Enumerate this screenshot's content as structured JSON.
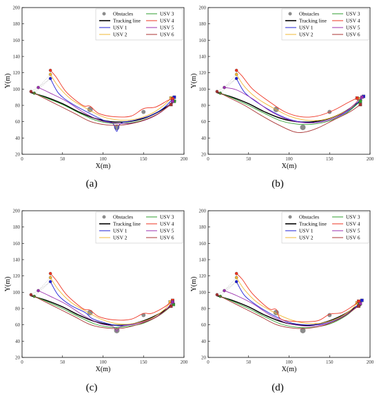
{
  "figure": {
    "panel_labels": [
      "(a)",
      "(b)",
      "(c)",
      "(d)"
    ]
  },
  "legend": {
    "entries": [
      {
        "label": "Obstacles",
        "kind": "marker",
        "color": "#8c8c8c"
      },
      {
        "label": "Tracking line",
        "kind": "line",
        "color": "#000000"
      },
      {
        "label": "USV 1",
        "kind": "line",
        "color": "#1f1fd6"
      },
      {
        "label": "USV 2",
        "kind": "line",
        "color": "#f2b733"
      },
      {
        "label": "USV 3",
        "kind": "line",
        "color": "#2e9e2e"
      },
      {
        "label": "USV 4",
        "kind": "line",
        "color": "#ee3322"
      },
      {
        "label": "USV 5",
        "kind": "line",
        "color": "#9b2fae"
      },
      {
        "label": "USV 6",
        "kind": "line",
        "color": "#a83232"
      }
    ]
  },
  "chart_data": [
    {
      "type": "line",
      "panel": "(a)",
      "xlabel": "X(m)",
      "ylabel": "Y(m)",
      "xlim": [
        0,
        200
      ],
      "ylim": [
        20,
        200
      ],
      "xticks": [
        0,
        50,
        100,
        150,
        200
      ],
      "yticks": [
        20,
        40,
        60,
        80,
        100,
        120,
        140,
        160,
        180,
        200
      ],
      "obstacles": [
        {
          "x": 84,
          "y": 75
        },
        {
          "x": 117,
          "y": 53
        },
        {
          "x": 150,
          "y": 72
        }
      ],
      "tracking_line": {
        "x": [
          10,
          30,
          50,
          70,
          90,
          110,
          130,
          150,
          170,
          190
        ],
        "y": [
          96,
          90,
          82,
          72,
          64,
          60,
          60,
          64,
          73,
          86
        ]
      },
      "series": [
        {
          "name": "USV 1",
          "color": "#1f1fd6",
          "x": [
            35,
            45,
            60,
            80,
            100,
            112,
            117,
            122,
            140,
            160,
            175,
            188
          ],
          "y": [
            113,
            95,
            83,
            72,
            62,
            58,
            48,
            58,
            62,
            68,
            77,
            90
          ]
        },
        {
          "name": "USV 2",
          "color": "#f2b733",
          "x": [
            35,
            45,
            60,
            80,
            100,
            120,
            140,
            160,
            175,
            184
          ],
          "y": [
            118,
            103,
            88,
            76,
            66,
            62,
            63,
            70,
            80,
            89
          ]
        },
        {
          "name": "USV 3",
          "color": "#2e9e2e",
          "x": [
            15,
            30,
            50,
            70,
            90,
            110,
            130,
            150,
            170,
            188
          ],
          "y": [
            95,
            89,
            81,
            71,
            62,
            58,
            58,
            62,
            71,
            85
          ]
        },
        {
          "name": "USV 4",
          "color": "#ee3322",
          "x": [
            35,
            42,
            55,
            75,
            84,
            95,
            115,
            135,
            150,
            165,
            180,
            186
          ],
          "y": [
            123,
            115,
            96,
            80,
            79,
            70,
            66,
            67,
            76,
            78,
            86,
            88
          ]
        },
        {
          "name": "USV 5",
          "color": "#9b2fae",
          "x": [
            20,
            35,
            55,
            75,
            95,
            115,
            135,
            155,
            172,
            186
          ],
          "y": [
            102,
            95,
            85,
            72,
            62,
            58,
            58,
            63,
            72,
            85
          ]
        },
        {
          "name": "USV 6",
          "color": "#a83232",
          "x": [
            11,
            25,
            45,
            65,
            85,
            105,
            125,
            145,
            165,
            184
          ],
          "y": [
            97,
            90,
            80,
            70,
            60,
            56,
            56,
            60,
            68,
            81
          ]
        }
      ]
    },
    {
      "type": "line",
      "panel": "(b)",
      "xlabel": "X(m)",
      "ylabel": "Y(m)",
      "xlim": [
        0,
        200
      ],
      "ylim": [
        20,
        200
      ],
      "xticks": [
        0,
        50,
        100,
        150,
        200
      ],
      "yticks": [
        20,
        40,
        60,
        80,
        100,
        120,
        140,
        160,
        180,
        200
      ],
      "obstacles": [
        {
          "x": 84,
          "y": 75
        },
        {
          "x": 117,
          "y": 53
        },
        {
          "x": 150,
          "y": 72
        }
      ],
      "tracking_line": {
        "x": [
          10,
          30,
          50,
          70,
          90,
          110,
          130,
          150,
          170,
          190
        ],
        "y": [
          96,
          90,
          82,
          72,
          64,
          60,
          60,
          64,
          73,
          87
        ]
      },
      "series": [
        {
          "name": "USV 1",
          "color": "#1f1fd6",
          "x": [
            35,
            45,
            60,
            80,
            100,
            120,
            140,
            160,
            178,
            192
          ],
          "y": [
            113,
            96,
            84,
            72,
            63,
            59,
            60,
            66,
            77,
            91
          ]
        },
        {
          "name": "USV 2",
          "color": "#f2b733",
          "x": [
            35,
            45,
            60,
            80,
            100,
            120,
            140,
            160,
            178,
            186
          ],
          "y": [
            118,
            103,
            89,
            77,
            67,
            62,
            62,
            68,
            78,
            88
          ]
        },
        {
          "name": "USV 3",
          "color": "#2e9e2e",
          "x": [
            15,
            30,
            50,
            70,
            90,
            110,
            130,
            150,
            170,
            188
          ],
          "y": [
            95,
            89,
            80,
            70,
            61,
            57,
            57,
            61,
            70,
            85
          ]
        },
        {
          "name": "USV 4",
          "color": "#ee3322",
          "x": [
            35,
            42,
            55,
            75,
            95,
            115,
            135,
            155,
            172,
            184
          ],
          "y": [
            123,
            116,
            100,
            85,
            72,
            66,
            67,
            74,
            83,
            89
          ]
        },
        {
          "name": "USV 5",
          "color": "#9b2fae",
          "x": [
            20,
            35,
            55,
            75,
            95,
            115,
            135,
            155,
            172,
            190
          ],
          "y": [
            102,
            99,
            88,
            74,
            64,
            59,
            59,
            64,
            74,
            90
          ]
        },
        {
          "name": "USV 6",
          "color": "#a83232",
          "x": [
            11,
            25,
            45,
            65,
            85,
            105,
            118,
            135,
            155,
            175,
            188
          ],
          "y": [
            97,
            90,
            80,
            68,
            57,
            48,
            47,
            52,
            62,
            72,
            81
          ]
        }
      ]
    },
    {
      "type": "line",
      "panel": "(c)",
      "xlabel": "X(m)",
      "ylabel": "Y(m)",
      "xlim": [
        0,
        200
      ],
      "ylim": [
        20,
        200
      ],
      "xticks": [
        0,
        50,
        100,
        150,
        200
      ],
      "yticks": [
        20,
        40,
        60,
        80,
        100,
        120,
        140,
        160,
        180,
        200
      ],
      "obstacles": [
        {
          "x": 84,
          "y": 75
        },
        {
          "x": 117,
          "y": 53
        },
        {
          "x": 150,
          "y": 72
        }
      ],
      "tracking_line": {
        "x": [
          10,
          30,
          50,
          70,
          90,
          110,
          130,
          150,
          170,
          188
        ],
        "y": [
          96,
          90,
          82,
          72,
          64,
          60,
          60,
          65,
          74,
          86
        ]
      },
      "series": [
        {
          "name": "USV 1",
          "color": "#1f1fd6",
          "x": [
            35,
            45,
            60,
            78,
            86,
            100,
            120,
            140,
            160,
            176,
            186
          ],
          "y": [
            113,
            96,
            84,
            75,
            68,
            63,
            59,
            62,
            67,
            77,
            88
          ]
        },
        {
          "name": "USV 2",
          "color": "#f2b733",
          "x": [
            35,
            45,
            60,
            80,
            100,
            120,
            140,
            160,
            176,
            183
          ],
          "y": [
            118,
            103,
            88,
            76,
            66,
            61,
            62,
            68,
            79,
            88
          ]
        },
        {
          "name": "USV 3",
          "color": "#2e9e2e",
          "x": [
            15,
            30,
            50,
            70,
            90,
            110,
            130,
            150,
            170,
            187
          ],
          "y": [
            95,
            89,
            80,
            70,
            61,
            57,
            58,
            62,
            72,
            85
          ]
        },
        {
          "name": "USV 4",
          "color": "#ee3322",
          "x": [
            35,
            42,
            55,
            75,
            84,
            95,
            115,
            135,
            150,
            160,
            176,
            186
          ],
          "y": [
            123,
            115,
            97,
            80,
            78,
            70,
            66,
            67,
            74,
            74,
            82,
            90
          ]
        },
        {
          "name": "USV 5",
          "color": "#9b2fae",
          "x": [
            20,
            35,
            55,
            75,
            95,
            112,
            117,
            122,
            140,
            158,
            174,
            186
          ],
          "y": [
            102,
            95,
            85,
            72,
            62,
            58,
            52,
            58,
            61,
            66,
            75,
            88
          ]
        },
        {
          "name": "USV 6",
          "color": "#a83232",
          "x": [
            11,
            25,
            45,
            65,
            85,
            105,
            125,
            145,
            165,
            184
          ],
          "y": [
            97,
            90,
            80,
            70,
            60,
            56,
            56,
            61,
            69,
            83
          ]
        }
      ]
    },
    {
      "type": "line",
      "panel": "(d)",
      "xlabel": "X(m)",
      "ylabel": "Y(m)",
      "xlim": [
        0,
        200
      ],
      "ylim": [
        20,
        200
      ],
      "xticks": [
        0,
        50,
        100,
        150,
        200
      ],
      "yticks": [
        20,
        40,
        60,
        80,
        100,
        120,
        140,
        160,
        180,
        200
      ],
      "obstacles": [
        {
          "x": 84,
          "y": 75
        },
        {
          "x": 117,
          "y": 53
        },
        {
          "x": 150,
          "y": 72
        }
      ],
      "tracking_line": {
        "x": [
          10,
          30,
          50,
          70,
          90,
          110,
          130,
          150,
          170,
          188
        ],
        "y": [
          96,
          90,
          82,
          72,
          64,
          60,
          60,
          65,
          74,
          86
        ]
      },
      "series": [
        {
          "name": "USV 1",
          "color": "#1f1fd6",
          "x": [
            35,
            45,
            60,
            80,
            100,
            120,
            140,
            160,
            178,
            190
          ],
          "y": [
            113,
            96,
            84,
            72,
            63,
            60,
            61,
            67,
            78,
            90
          ]
        },
        {
          "name": "USV 2",
          "color": "#f2b733",
          "x": [
            35,
            45,
            60,
            80,
            100,
            120,
            140,
            160,
            176,
            184
          ],
          "y": [
            118,
            103,
            88,
            76,
            67,
            62,
            62,
            68,
            78,
            87
          ]
        },
        {
          "name": "USV 3",
          "color": "#2e9e2e",
          "x": [
            15,
            30,
            50,
            70,
            90,
            110,
            130,
            150,
            170,
            187
          ],
          "y": [
            95,
            89,
            80,
            70,
            61,
            57,
            57,
            61,
            71,
            85
          ]
        },
        {
          "name": "USV 4",
          "color": "#ee3322",
          "x": [
            35,
            42,
            55,
            75,
            84,
            90,
            110,
            135,
            150,
            165,
            180,
            186
          ],
          "y": [
            123,
            116,
            98,
            80,
            79,
            67,
            64,
            65,
            73,
            75,
            84,
            89
          ]
        },
        {
          "name": "USV 5",
          "color": "#9b2fae",
          "x": [
            20,
            35,
            55,
            75,
            95,
            115,
            135,
            155,
            172,
            188
          ],
          "y": [
            102,
            96,
            86,
            73,
            63,
            59,
            59,
            64,
            73,
            86
          ]
        },
        {
          "name": "USV 6",
          "color": "#a83232",
          "x": [
            11,
            25,
            45,
            65,
            85,
            105,
            125,
            145,
            165,
            186
          ],
          "y": [
            97,
            90,
            80,
            70,
            60,
            56,
            56,
            60,
            69,
            83
          ]
        }
      ]
    }
  ]
}
